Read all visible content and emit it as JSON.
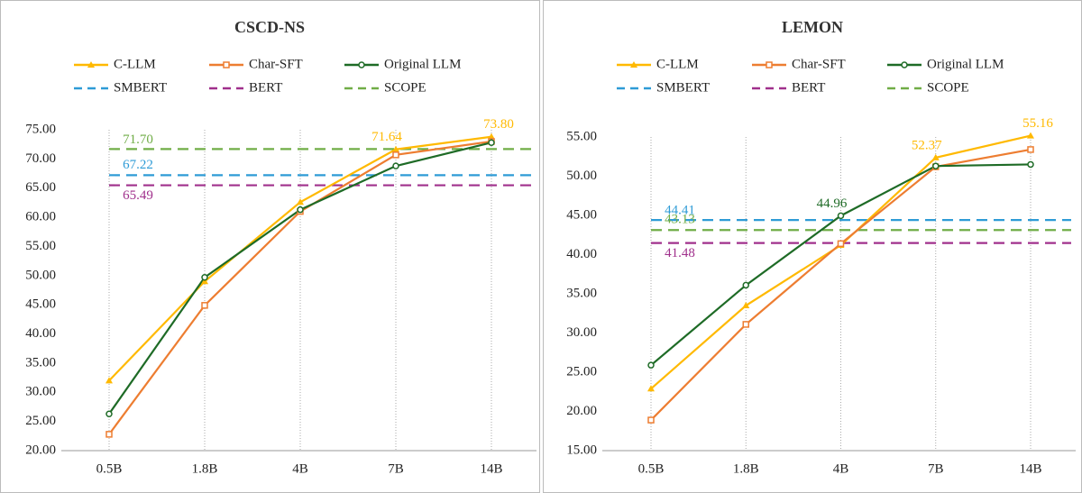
{
  "chart_data": [
    {
      "type": "line",
      "title": "CSCD-NS",
      "categories": [
        "0.5B",
        "1.8B",
        "4B",
        "7B",
        "14B"
      ],
      "ylim": [
        20,
        75
      ],
      "yticks": [
        {
          "value": 20,
          "label": "20.00"
        },
        {
          "value": 25,
          "label": "25.00"
        },
        {
          "value": 30,
          "label": "30.00"
        },
        {
          "value": 35,
          "label": "35.00"
        },
        {
          "value": 40,
          "label": "40.00"
        },
        {
          "value": 45,
          "label": "45.00"
        },
        {
          "value": 50,
          "label": "50.00"
        },
        {
          "value": 55,
          "label": "55.00"
        },
        {
          "value": 60,
          "label": "60.00"
        },
        {
          "value": 65,
          "label": "65.00"
        },
        {
          "value": 70,
          "label": "70.00"
        },
        {
          "value": 75,
          "label": "75.00"
        }
      ],
      "series": [
        {
          "name": "C-LLM",
          "color": "#ffb900",
          "marker": "triangle",
          "values": [
            32.0,
            49.0,
            62.6,
            71.64,
            73.8
          ],
          "value_labels": [
            null,
            null,
            null,
            "71.64",
            "73.80"
          ]
        },
        {
          "name": "Char-SFT",
          "color": "#ed7d31",
          "marker": "square",
          "values": [
            22.8,
            44.9,
            61.0,
            70.7,
            73.0
          ]
        },
        {
          "name": "Original LLM",
          "color": "#1e6b26",
          "marker": "circle",
          "values": [
            26.3,
            49.7,
            61.3,
            68.8,
            72.8
          ]
        }
      ],
      "baselines": [
        {
          "name": "SMBERT",
          "color": "#2e9bd6",
          "value": 67.22,
          "value_label": "67.22"
        },
        {
          "name": "BERT",
          "color": "#a0308c",
          "value": 65.49,
          "value_label": "65.49"
        },
        {
          "name": "SCOPE",
          "color": "#70ad47",
          "value": 71.7,
          "value_label": "71.70"
        }
      ]
    },
    {
      "type": "line",
      "title": "LEMON",
      "categories": [
        "0.5B",
        "1.8B",
        "4B",
        "7B",
        "14B"
      ],
      "ylim": [
        15,
        55
      ],
      "yticks": [
        {
          "value": 15,
          "label": "15.00"
        },
        {
          "value": 20,
          "label": "20.00"
        },
        {
          "value": 25,
          "label": "25.00"
        },
        {
          "value": 30,
          "label": "30.00"
        },
        {
          "value": 35,
          "label": "35.00"
        },
        {
          "value": 40,
          "label": "40.00"
        },
        {
          "value": 45,
          "label": "45.00"
        },
        {
          "value": 50,
          "label": "50.00"
        },
        {
          "value": 55,
          "label": "55.00"
        }
      ],
      "series": [
        {
          "name": "C-LLM",
          "color": "#ffb900",
          "marker": "triangle",
          "values": [
            22.9,
            33.5,
            41.2,
            52.37,
            55.16
          ],
          "value_labels": [
            null,
            null,
            null,
            "52.37",
            "55.16"
          ]
        },
        {
          "name": "Char-SFT",
          "color": "#ed7d31",
          "marker": "square",
          "values": [
            18.9,
            31.1,
            41.4,
            51.2,
            53.4
          ]
        },
        {
          "name": "Original LLM",
          "color": "#1e6b26",
          "marker": "circle",
          "values": [
            25.9,
            36.1,
            44.96,
            51.3,
            51.5
          ],
          "value_labels": [
            null,
            null,
            "44.96",
            null,
            null
          ]
        }
      ],
      "baselines": [
        {
          "name": "SMBERT",
          "color": "#2e9bd6",
          "value": 44.41,
          "value_label": "44.41"
        },
        {
          "name": "BERT",
          "color": "#a0308c",
          "value": 41.48,
          "value_label": "41.48"
        },
        {
          "name": "SCOPE",
          "color": "#70ad47",
          "value": 43.13,
          "value_label": "43.13"
        }
      ]
    }
  ]
}
